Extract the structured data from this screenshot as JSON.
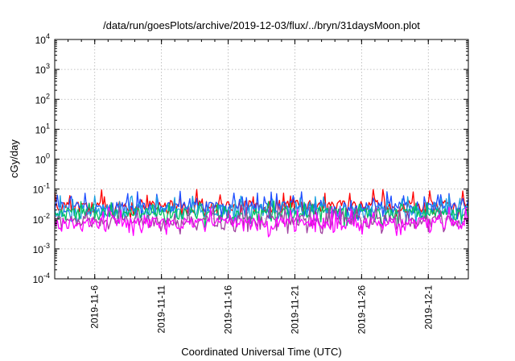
{
  "chart_data": {
    "type": "line",
    "title": "/data/run/goesPlots/archive/2019-12-03/flux/../bryn/31daysMoon.plot",
    "xlabel": "Coordinated Universal Time (UTC)",
    "ylabel": "cGy/day",
    "x_range": [
      "2019-11-03",
      "2019-12-04"
    ],
    "ylim": [
      0.0001,
      10000
    ],
    "yscale": "log",
    "grid": true,
    "legend": "none",
    "x_ticks": [
      {
        "date": "2019-11-06",
        "label": "2019-11-6"
      },
      {
        "date": "2019-11-11",
        "label": "2019-11-11"
      },
      {
        "date": "2019-11-16",
        "label": "2019-11-16"
      },
      {
        "date": "2019-11-21",
        "label": "2019-11-21"
      },
      {
        "date": "2019-11-26",
        "label": "2019-11-26"
      },
      {
        "date": "2019-12-01",
        "label": "2019-12-1"
      }
    ],
    "y_ticks": [
      {
        "value": 0.0001,
        "base": "10",
        "exp": "-4"
      },
      {
        "value": 0.001,
        "base": "10",
        "exp": "-3"
      },
      {
        "value": 0.01,
        "base": "10",
        "exp": "-2"
      },
      {
        "value": 0.1,
        "base": "10",
        "exp": "-1"
      },
      {
        "value": 1,
        "base": "10",
        "exp": "0"
      },
      {
        "value": 10,
        "base": "10",
        "exp": "1"
      },
      {
        "value": 100,
        "base": "10",
        "exp": "2"
      },
      {
        "value": 1000,
        "base": "10",
        "exp": "3"
      },
      {
        "value": 10000,
        "base": "10",
        "exp": "4"
      }
    ],
    "series": [
      {
        "color": "#ff0000",
        "baseline": 0.028,
        "spike_max": 0.1
      },
      {
        "color": "#1f4fff",
        "baseline": 0.025,
        "spike_max": 0.085
      },
      {
        "color": "#1ca0e0",
        "baseline": 0.02,
        "spike_max": 0.06
      },
      {
        "color": "#00c060",
        "baseline": 0.015,
        "spike_max": 0.04
      },
      {
        "color": "#a040a0",
        "baseline": 0.009,
        "spike_max": 0.03
      },
      {
        "color": "#ff00ff",
        "baseline": 0.0075,
        "spike_max": 0.025,
        "min": 0.0025
      }
    ]
  }
}
